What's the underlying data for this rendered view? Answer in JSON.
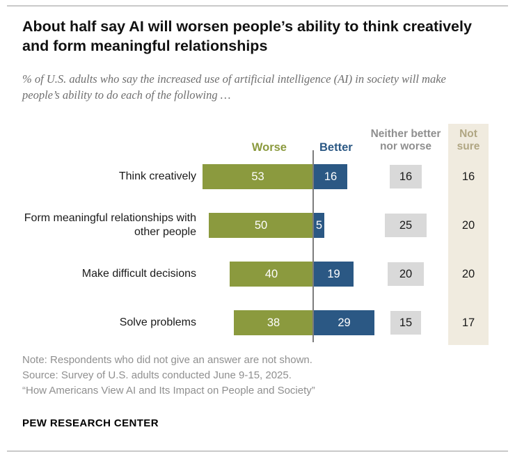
{
  "header": {
    "title": "About half say AI will worsen people’s ability to think creatively and form meaningful relationships",
    "subtitle": "% of U.S. adults who say the increased use of artificial intelligence (AI) in society will make people’s ability to do each of the following …"
  },
  "legend": {
    "worse": "Worse",
    "better": "Better",
    "neither_line1": "Neither better",
    "neither_line2": "nor worse",
    "not_sure_line1": "Not",
    "not_sure_line2": "sure"
  },
  "chart_data": {
    "type": "bar",
    "variant": "diverging-horizontal",
    "title": "About half say AI will worsen people’s ability to think creatively and form meaningful relationships",
    "subtitle": "% of U.S. adults who say the increased use of artificial intelligence (AI) in society will make people’s ability to do each of the following …",
    "categories": [
      "Think creatively",
      "Form meaningful relationships with other people",
      "Make difficult decisions",
      "Solve problems"
    ],
    "series": [
      {
        "name": "Worse",
        "values": [
          53,
          50,
          40,
          38
        ]
      },
      {
        "name": "Better",
        "values": [
          16,
          5,
          19,
          29
        ]
      },
      {
        "name": "Neither better nor worse",
        "values": [
          16,
          25,
          20,
          15
        ]
      },
      {
        "name": "Not sure",
        "values": [
          16,
          20,
          20,
          17
        ]
      }
    ],
    "value_unit": "percent",
    "legend_position": "top",
    "grid": "off",
    "colors": {
      "worse": "#8b9a3e",
      "better": "#2b5884",
      "neither": "#d9d9d9",
      "neither_header": "#8f8f8f",
      "not_sure_header": "#b0a683",
      "not_sure_bg": "#f0ebdf",
      "axis_line": "#7c7c7c"
    }
  },
  "notes": {
    "note": "Note: Respondents who did not give an answer are not shown.",
    "source": "Source: Survey of U.S. adults conducted June 9-15, 2025.",
    "citation": "“How Americans View AI and Its Impact on People and Society”"
  },
  "footer": {
    "brand": "PEW RESEARCH CENTER"
  }
}
